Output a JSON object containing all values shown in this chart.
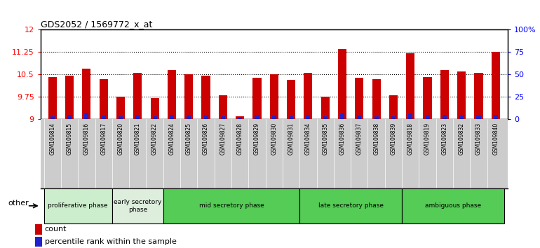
{
  "title": "GDS2052 / 1569772_x_at",
  "samples": [
    "GSM109814",
    "GSM109815",
    "GSM109816",
    "GSM109817",
    "GSM109820",
    "GSM109821",
    "GSM109822",
    "GSM109824",
    "GSM109825",
    "GSM109826",
    "GSM109827",
    "GSM109828",
    "GSM109829",
    "GSM109830",
    "GSM109831",
    "GSM109834",
    "GSM109835",
    "GSM109836",
    "GSM109837",
    "GSM109838",
    "GSM109839",
    "GSM109818",
    "GSM109819",
    "GSM109823",
    "GSM109832",
    "GSM109833",
    "GSM109840"
  ],
  "counts": [
    10.4,
    10.45,
    10.7,
    10.35,
    9.75,
    10.55,
    9.7,
    10.65,
    10.5,
    10.45,
    9.8,
    9.1,
    10.38,
    10.5,
    10.32,
    10.55,
    9.75,
    11.35,
    10.38,
    10.35,
    9.8,
    11.2,
    10.42,
    10.65,
    10.6,
    10.55,
    11.25
  ],
  "percentiles": [
    3,
    5,
    7,
    4,
    3,
    4,
    3,
    5,
    4,
    4,
    3,
    2,
    4,
    4,
    3,
    4,
    3,
    6,
    4,
    3,
    3,
    6,
    4,
    5,
    4,
    4,
    5
  ],
  "phase_data": [
    {
      "label": "proliferative phase",
      "start": 0,
      "end": 4,
      "color": "#cceecc"
    },
    {
      "label": "early secretory\nphase",
      "start": 4,
      "end": 7,
      "color": "#ddeedd"
    },
    {
      "label": "mid secretory phase",
      "start": 7,
      "end": 15,
      "color": "#55cc55"
    },
    {
      "label": "late secretory phase",
      "start": 15,
      "end": 21,
      "color": "#55cc55"
    },
    {
      "label": "ambiguous phase",
      "start": 21,
      "end": 27,
      "color": "#55cc55"
    }
  ],
  "ylim_left": [
    9,
    12
  ],
  "ylim_right": [
    0,
    100
  ],
  "yticks_left": [
    9,
    9.75,
    10.5,
    11.25,
    12
  ],
  "ytick_labels_left": [
    "9",
    "9.75",
    "10.5",
    "11.25",
    "12"
  ],
  "yticks_right": [
    0,
    25,
    50,
    75,
    100
  ],
  "ytick_labels_right": [
    "0",
    "25",
    "50",
    "75",
    "100%"
  ],
  "base_value": 9.0,
  "bar_color_red": "#cc0000",
  "bar_color_blue": "#2222cc",
  "plot_bg_color": "#ffffff",
  "xtick_bg_color": "#cccccc"
}
